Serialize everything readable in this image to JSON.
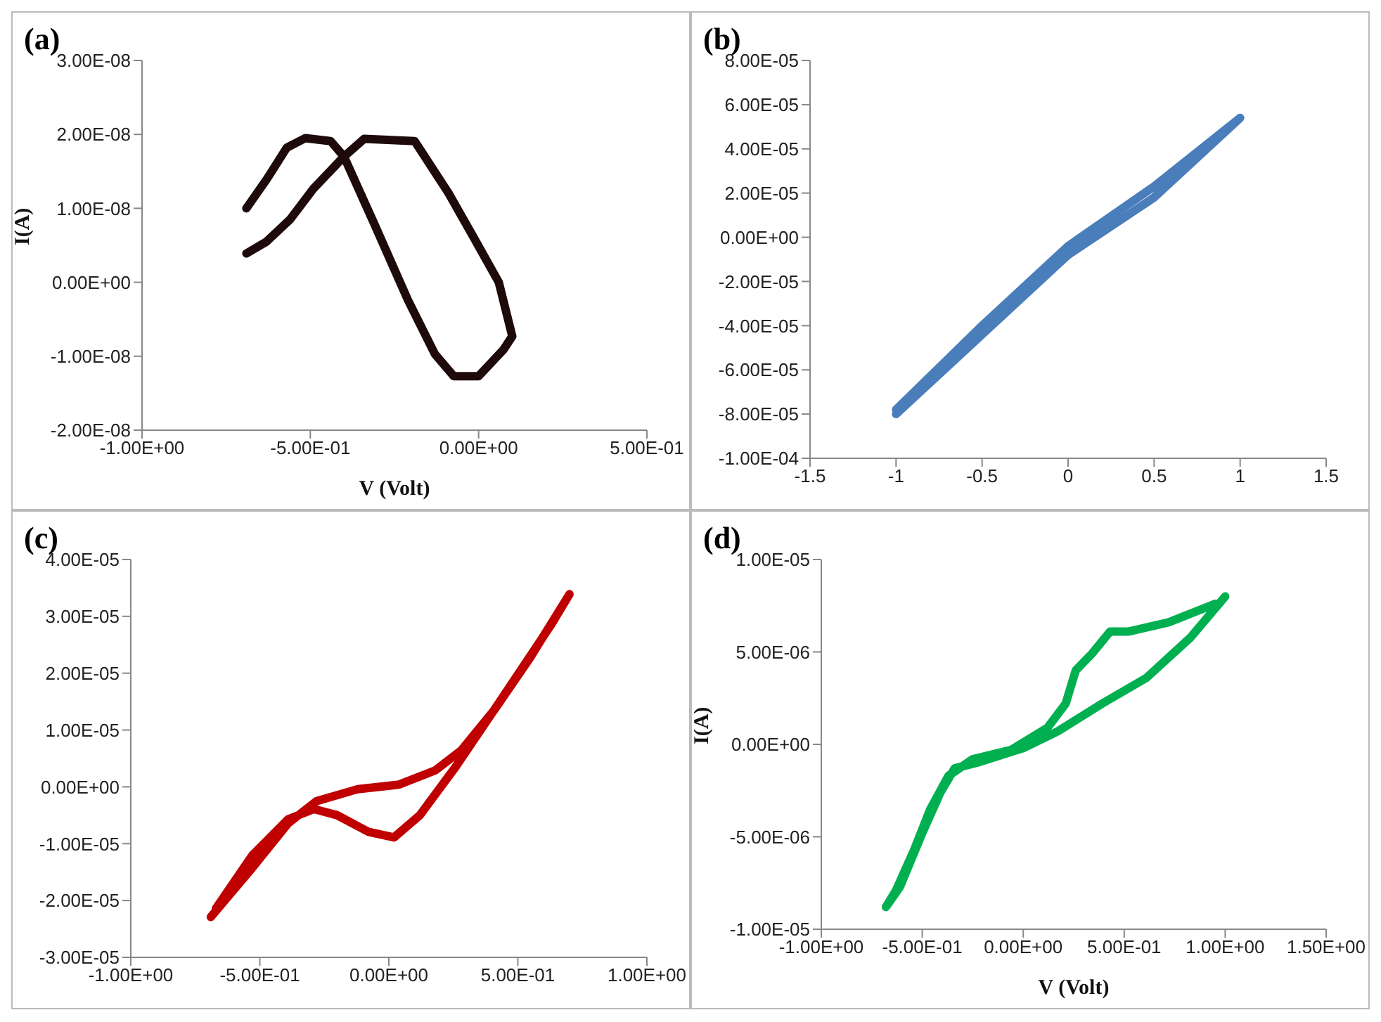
{
  "chart_data": [
    {
      "type": "line",
      "title": "(a)",
      "xlabel": "V (Volt)",
      "ylabel": "I(A)",
      "xlim": [
        -1,
        0.5
      ],
      "xticks": [
        {
          "value": -1,
          "label": "-1.00E+00"
        },
        {
          "value": -0.5,
          "label": "-5.00E-01"
        },
        {
          "value": 0,
          "label": "0.00E+00"
        },
        {
          "value": 0.5,
          "label": "5.00E-01"
        }
      ],
      "ylim": [
        -2e-08,
        3e-08
      ],
      "yticks": [
        {
          "value": -2e-08,
          "label": "-2.00E-08"
        },
        {
          "value": -1e-08,
          "label": "-1.00E-08"
        },
        {
          "value": 0,
          "label": "0.00E+00"
        },
        {
          "value": 1e-08,
          "label": "1.00E-08"
        },
        {
          "value": 2e-08,
          "label": "2.00E-08"
        },
        {
          "value": 3e-08,
          "label": "3.00E-08"
        }
      ],
      "series": [
        {
          "color": "#1e0a0a",
          "x": [
            -0.69,
            -0.63,
            -0.56,
            -0.49,
            -0.4,
            -0.34,
            -0.19,
            -0.09,
            -0.015,
            0.06,
            0.1,
            0.074,
            0,
            -0.074,
            -0.13,
            -0.21,
            -0.31,
            -0.4,
            -0.44,
            -0.515,
            -0.57,
            -0.63,
            -0.69
          ],
          "values": [
            3.9e-09,
            5.5e-09,
            8.5e-09,
            1.27e-08,
            1.7e-08,
            1.94e-08,
            1.91e-08,
            1.21e-08,
            6.1e-09,
            0,
            -7.3e-09,
            -9.1e-09,
            -1.27e-08,
            -1.27e-08,
            -9.7e-09,
            -2.4e-09,
            7.9e-09,
            1.7e-08,
            1.91e-08,
            1.95e-08,
            1.82e-08,
            1.39e-08,
            1e-08
          ]
        }
      ]
    },
    {
      "type": "line",
      "title": "(b)",
      "xlim": [
        -1.5,
        1.5
      ],
      "xticks": [
        -1.5,
        -1,
        -0.5,
        0,
        0.5,
        1,
        1.5
      ],
      "ylim": [
        -0.0001,
        8e-05
      ],
      "yticks": [
        {
          "value": -0.0001,
          "label": "-1.00E-04"
        },
        {
          "value": -8e-05,
          "label": "-8.00E-05"
        },
        {
          "value": -6e-05,
          "label": "-6.00E-05"
        },
        {
          "value": -4e-05,
          "label": "-4.00E-05"
        },
        {
          "value": -2e-05,
          "label": "-2.00E-05"
        },
        {
          "value": 0,
          "label": "0.00E+00"
        },
        {
          "value": 2e-05,
          "label": "2.00E-05"
        },
        {
          "value": 4e-05,
          "label": "4.00E-05"
        },
        {
          "value": 6e-05,
          "label": "6.00E-05"
        },
        {
          "value": 8e-05,
          "label": "8.00E-05"
        }
      ],
      "series": [
        {
          "color": "#4a7ebb",
          "x": [
            -1,
            -0.5,
            0,
            0.5,
            1,
            0.5,
            0,
            -0.5,
            -1
          ],
          "values": [
            -8e-05,
            -4.4e-05,
            -8e-06,
            1.8e-05,
            5.4e-05,
            2.3e-05,
            -4e-06,
            -4e-05,
            -7.8e-05
          ]
        }
      ]
    },
    {
      "type": "line",
      "title": "(c)",
      "xlim": [
        -1,
        1
      ],
      "xticks": [
        {
          "value": -1,
          "label": "-1.00E+00"
        },
        {
          "value": -0.5,
          "label": "-5.00E-01"
        },
        {
          "value": 0,
          "label": "0.00E+00"
        },
        {
          "value": 0.5,
          "label": "5.00E-01"
        },
        {
          "value": 1,
          "label": "1.00E+00"
        }
      ],
      "ylim": [
        -3e-05,
        4e-05
      ],
      "yticks": [
        {
          "value": -3e-05,
          "label": "-3.00E-05"
        },
        {
          "value": -2e-05,
          "label": "-2.00E-05"
        },
        {
          "value": -1e-05,
          "label": "-1.00E-05"
        },
        {
          "value": 0,
          "label": "0.00E+00"
        },
        {
          "value": 1e-05,
          "label": "1.00E-05"
        },
        {
          "value": 2e-05,
          "label": "2.00E-05"
        },
        {
          "value": 3e-05,
          "label": "3.00E-05"
        },
        {
          "value": 4e-05,
          "label": "4.00E-05"
        }
      ],
      "series": [
        {
          "color": "#c00000",
          "x": [
            -0.69,
            -0.53,
            -0.39,
            -0.28,
            -0.12,
            0.04,
            0.18,
            0.28,
            0.41,
            0.55,
            0.7,
            0.63,
            0.43,
            0.26,
            0.12,
            0.02,
            -0.08,
            -0.2,
            -0.29,
            -0.39,
            -0.53,
            -0.67
          ],
          "values": [
            -2.29e-05,
            -1.43e-05,
            -6.4e-06,
            -2.5e-06,
            -4e-07,
            4e-07,
            2.9e-06,
            6.4e-06,
            1.36e-05,
            2.29e-05,
            3.39e-05,
            2.86e-05,
            1.5e-05,
            3.6e-06,
            -5e-06,
            -8.9e-06,
            -7.9e-06,
            -5e-06,
            -3.9e-06,
            -5.7e-06,
            -1.21e-05,
            -2.14e-05
          ]
        }
      ]
    },
    {
      "type": "line",
      "title": "(d)",
      "xlabel": "V (Volt)",
      "ylabel": "I(A)",
      "xlim": [
        -1,
        1.5
      ],
      "xticks": [
        {
          "value": -1,
          "label": "-1.00E+00"
        },
        {
          "value": -0.5,
          "label": "-5.00E-01"
        },
        {
          "value": 0,
          "label": "0.00E+00"
        },
        {
          "value": 0.5,
          "label": "5.00E-01"
        },
        {
          "value": 1,
          "label": "1.00E+00"
        },
        {
          "value": 1.5,
          "label": "1.50E+00"
        }
      ],
      "ylim": [
        -1e-05,
        1e-05
      ],
      "yticks": [
        {
          "value": -1e-05,
          "label": "-1.00E-05"
        },
        {
          "value": -5e-06,
          "label": "-5.00E-06"
        },
        {
          "value": 0,
          "label": "0.00E+00"
        },
        {
          "value": 5e-06,
          "label": "5.00E-06"
        },
        {
          "value": 1e-05,
          "label": "1.00E-05"
        }
      ],
      "series": [
        {
          "color": "#00b050",
          "x": [
            1.0,
            0.83,
            0.61,
            0.39,
            0.17,
            0,
            -0.23,
            -0.34,
            -0.41,
            -0.5,
            -0.61,
            -0.68,
            -0.63,
            -0.54,
            -0.46,
            -0.37,
            -0.25,
            -0.06,
            0.12,
            0.21,
            0.26,
            0.34,
            0.43,
            0.52,
            0.72,
            0.95
          ],
          "values": [
            8e-06,
            5.8e-06,
            3.6e-06,
            2.2e-06,
            7e-07,
            -2e-07,
            -1e-06,
            -1.3e-06,
            -2.6e-06,
            -4.8e-06,
            -7.7e-06,
            -8.8e-06,
            -7.9e-06,
            -5.7e-06,
            -3.5e-06,
            -1.7e-06,
            -8e-07,
            -3e-07,
            9e-07,
            2.2e-06,
            4e-06,
            4.9e-06,
            6.1e-06,
            6.1e-06,
            6.6e-06,
            7.6e-06
          ]
        }
      ]
    }
  ]
}
